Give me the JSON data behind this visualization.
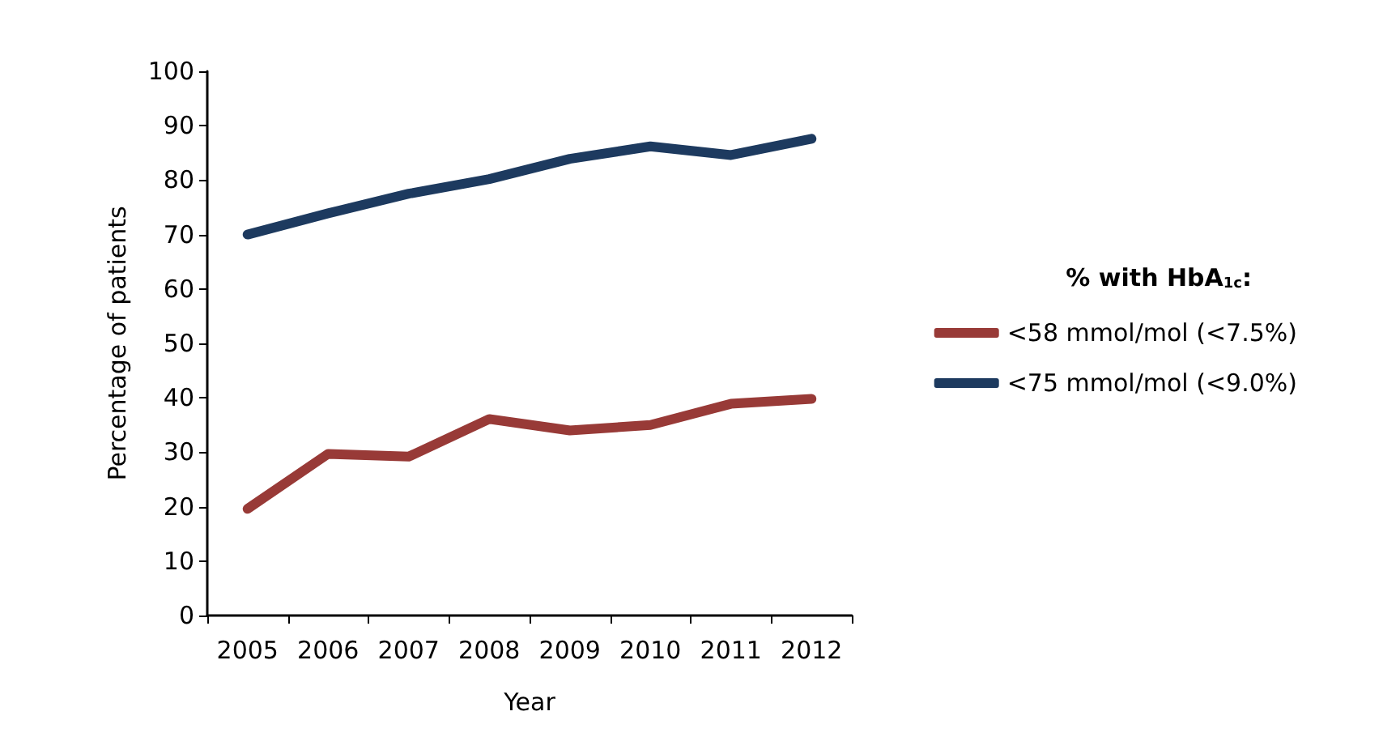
{
  "chart_data": {
    "type": "line",
    "xlabel": "Year",
    "ylabel": "Percentage of patients",
    "legend_title": "% with HbA$_{1c}$:",
    "categories": [
      "2005",
      "2006",
      "2007",
      "2008",
      "2009",
      "2010",
      "2011",
      "2012"
    ],
    "series": [
      {
        "name": "<58 mmol/mol (<7.5%)",
        "color": "#983a37",
        "values": [
          19.6,
          29.7,
          29.2,
          36.1,
          34.0,
          35.0,
          38.9,
          39.8
        ]
      },
      {
        "name": "<75 mmol/mol (<9.0%)",
        "color": "#1d3a5f",
        "values": [
          70.0,
          73.9,
          77.5,
          80.2,
          83.9,
          86.2,
          84.6,
          87.6
        ]
      }
    ],
    "ylim": [
      0,
      100
    ],
    "yticks": [
      0,
      10,
      20,
      30,
      40,
      50,
      60,
      70,
      80,
      90,
      100
    ],
    "grid": false,
    "legend": "right",
    "marker": "none",
    "line_style": "solid"
  }
}
